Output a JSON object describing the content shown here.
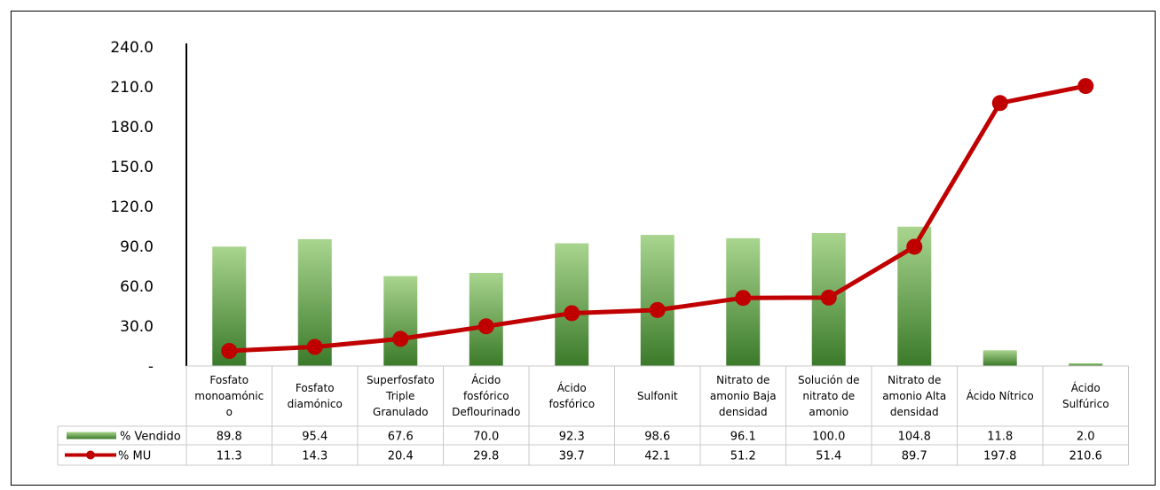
{
  "chart_data": {
    "type": "bar",
    "categories": [
      [
        "Fosfato",
        "monoamónic",
        "o"
      ],
      [
        "Fosfato",
        "diamónico"
      ],
      [
        "Superfosfato",
        "Triple",
        "Granulado"
      ],
      [
        "Ácido",
        "fosfórico",
        "Deflourinado"
      ],
      [
        "Ácido",
        "fosfórico"
      ],
      [
        "Sulfonit"
      ],
      [
        "Nitrato de",
        "amonio Baja",
        "densidad"
      ],
      [
        "Solución de",
        "nitrato de",
        "amonio"
      ],
      [
        "Nitrato de",
        "amonio Alta",
        "densidad"
      ],
      [
        "Ácido Nítrico"
      ],
      [
        "Ácido",
        "Sulfúrico"
      ]
    ],
    "series": [
      {
        "name": "% Vendido",
        "type": "bar",
        "color": "#5a9e47",
        "values": [
          89.8,
          95.4,
          67.6,
          70.0,
          92.3,
          98.6,
          96.1,
          100.0,
          104.8,
          11.8,
          2.0
        ]
      },
      {
        "name": "% MU",
        "type": "line",
        "color": "#c00000",
        "values": [
          11.3,
          14.3,
          20.4,
          29.8,
          39.7,
          42.1,
          51.2,
          51.4,
          89.7,
          197.8,
          210.6
        ]
      }
    ],
    "yticks": [
      "-",
      "30.0",
      "60.0",
      "90.0",
      "120.0",
      "150.0",
      "180.0",
      "210.0",
      "240.0"
    ],
    "ylim": [
      0,
      240
    ],
    "grid": false,
    "data_table": true
  }
}
